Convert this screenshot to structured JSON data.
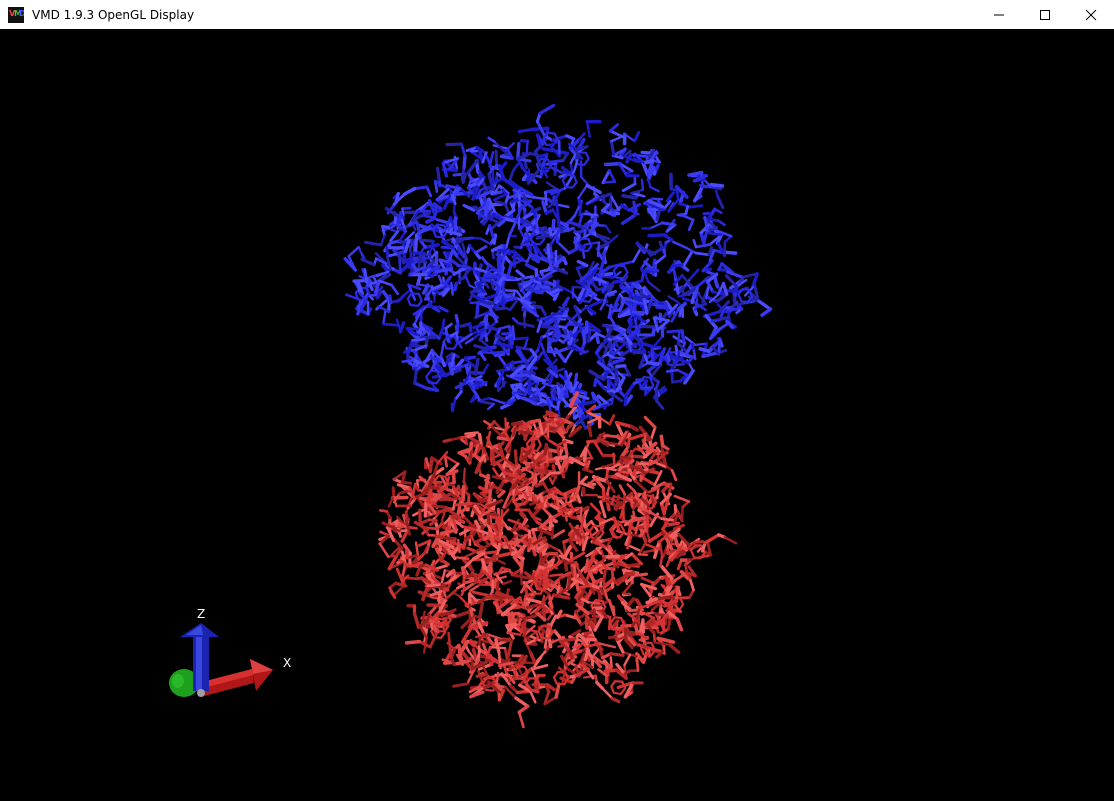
{
  "window": {
    "title": "VMD 1.9.3 OpenGL Display",
    "app_icon": "vmd-logo-icon",
    "controls": [
      "minimize-icon",
      "maximize-icon",
      "close-icon"
    ]
  },
  "display": {
    "background": "#000000",
    "molecule": {
      "representation": "licorice",
      "chains": [
        {
          "color": "#2a2ae0"
        },
        {
          "color": "#d23232"
        }
      ]
    },
    "axes": {
      "x_label": "X",
      "y_label": "",
      "z_label": "Z",
      "colors": {
        "x": "#c81e1e",
        "y": "#1ea01e",
        "z": "#1e28c8"
      }
    }
  }
}
